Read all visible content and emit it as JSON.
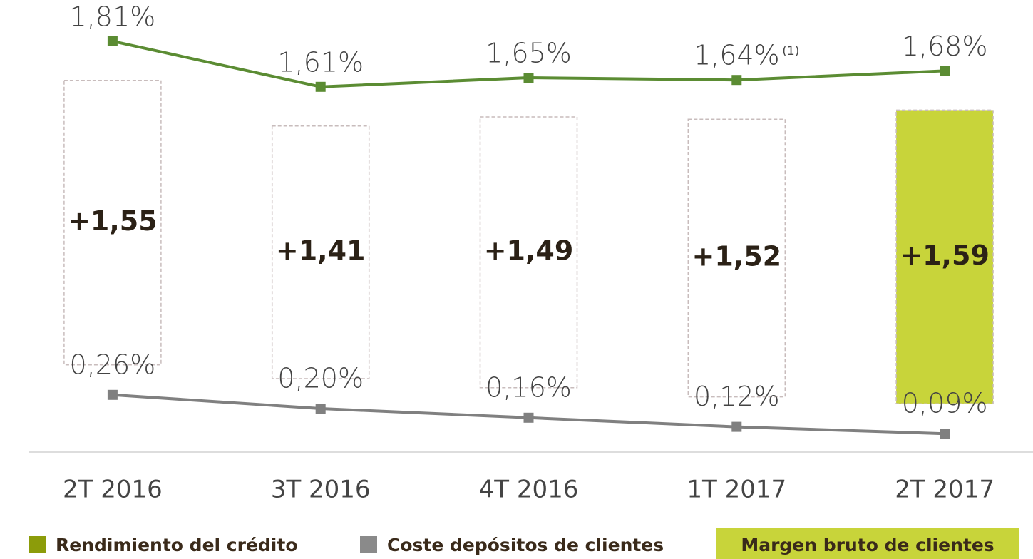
{
  "chart_data": {
    "type": "line",
    "categories": [
      "2T 2016",
      "3T 2016",
      "4T 2016",
      "1T 2017",
      "2T 2017"
    ],
    "series": [
      {
        "name": "Rendimiento del crédito",
        "color": "#5b8c33",
        "legend_color": "#8c9c0a",
        "values": [
          1.81,
          1.61,
          1.65,
          1.64,
          1.68
        ],
        "value_labels": [
          "1,81%",
          "1,61%",
          "1,65%",
          "1,64%",
          "1,68%"
        ]
      },
      {
        "name": "Coste depósitos de clientes",
        "color": "#808080",
        "legend_color": "#8a8a8a",
        "values": [
          0.26,
          0.2,
          0.16,
          0.12,
          0.09
        ],
        "value_labels": [
          "0,26%",
          "0,20%",
          "0,16%",
          "0,12%",
          "0,09%"
        ]
      },
      {
        "name": "Margen bruto de clientes",
        "type": "bar",
        "color": "#c8d43a",
        "colors": [
          "#ffffff",
          "#ffffff",
          "#ffffff",
          "#ffffff",
          "#c8d43a"
        ],
        "values": [
          1.55,
          1.41,
          1.49,
          1.52,
          1.59
        ],
        "value_labels": [
          "+1,55",
          "+1,41",
          "+1,49",
          "+1,52",
          "+1,59"
        ]
      }
    ],
    "annotation": "(1)",
    "ylim": [
      0,
      1.95
    ]
  }
}
